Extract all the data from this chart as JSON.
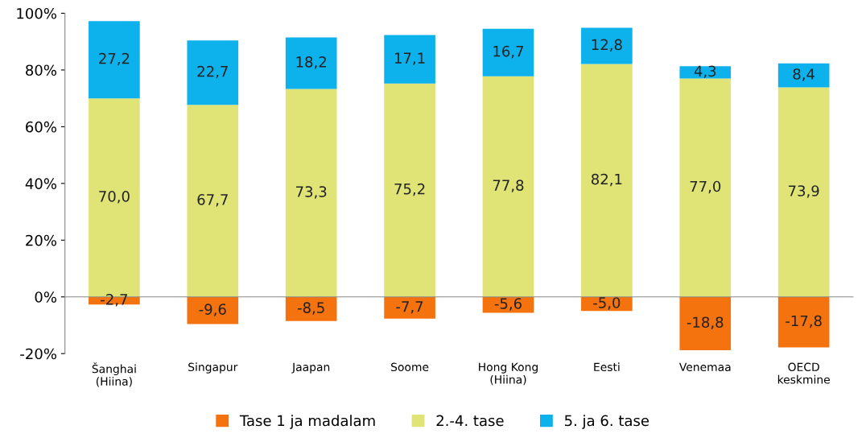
{
  "chart_data": {
    "type": "bar",
    "stacked": true,
    "categories": [
      "Šanghai\n(Hiina)",
      "Singapur",
      "Jaapan",
      "Soome",
      "Hong Kong\n(Hiina)",
      "Eesti",
      "Venemaa",
      "OECD\nkeskmine"
    ],
    "series": [
      {
        "name": "Tase 1 ja madalam",
        "color": "#f4730f",
        "values": [
          -2.7,
          -9.6,
          -8.5,
          -7.7,
          -5.6,
          -5.0,
          -18.8,
          -17.8
        ],
        "value_labels": [
          "-2,7",
          "-9,6",
          "-8,5",
          "-7,7",
          "-5,6",
          "-5,0",
          "-18,8",
          "-17,8"
        ]
      },
      {
        "name": "2.-4. tase",
        "color": "#e0e376",
        "values": [
          70.0,
          67.7,
          73.3,
          75.2,
          77.8,
          82.1,
          77.0,
          73.9
        ],
        "value_labels": [
          "70,0",
          "67,7",
          "73,3",
          "75,2",
          "77,8",
          "82,1",
          "77,0",
          "73,9"
        ]
      },
      {
        "name": "5. ja 6. tase",
        "color": "#0db1ec",
        "values": [
          27.2,
          22.7,
          18.2,
          17.1,
          16.7,
          12.8,
          4.3,
          8.4
        ],
        "value_labels": [
          "27,2",
          "22,7",
          "18,2",
          "17,1",
          "16,7",
          "12,8",
          "4,3",
          "8,4"
        ]
      }
    ],
    "ylim": [
      -20,
      100
    ],
    "yticks": [
      {
        "value": -20,
        "label": "-20%"
      },
      {
        "value": 0,
        "label": "0%"
      },
      {
        "value": 20,
        "label": "20%"
      },
      {
        "value": 40,
        "label": "40%"
      },
      {
        "value": 60,
        "label": "60%"
      },
      {
        "value": 80,
        "label": "80%"
      },
      {
        "value": 100,
        "label": "100%"
      }
    ],
    "legend": "bottom"
  }
}
